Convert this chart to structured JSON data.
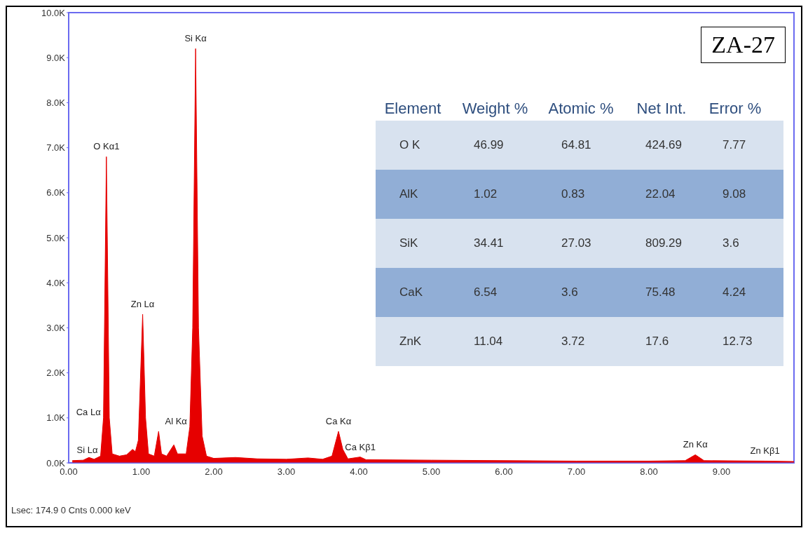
{
  "chart_data": {
    "type": "area",
    "title": "ZA-27",
    "x": [
      0.05,
      0.2,
      0.28,
      0.35,
      0.44,
      0.48,
      0.52,
      0.56,
      0.6,
      0.7,
      0.8,
      0.88,
      0.92,
      0.96,
      1.02,
      1.06,
      1.1,
      1.18,
      1.24,
      1.28,
      1.35,
      1.45,
      1.5,
      1.62,
      1.67,
      1.71,
      1.75,
      1.79,
      1.84,
      1.9,
      2.0,
      2.3,
      2.6,
      3.0,
      3.3,
      3.5,
      3.63,
      3.72,
      3.78,
      3.85,
      4.02,
      4.1,
      5.0,
      6.0,
      7.0,
      8.0,
      8.5,
      8.64,
      8.76,
      9.6,
      10.0
    ],
    "series": [
      {
        "color": "#e60000",
        "values": [
          50,
          60,
          120,
          80,
          150,
          1000,
          6800,
          1000,
          200,
          150,
          180,
          300,
          250,
          500,
          3300,
          1000,
          200,
          150,
          700,
          200,
          150,
          400,
          200,
          200,
          800,
          3000,
          9200,
          3000,
          600,
          150,
          100,
          120,
          90,
          80,
          110,
          80,
          150,
          700,
          300,
          90,
          130,
          70,
          60,
          50,
          40,
          40,
          50,
          180,
          50,
          40,
          30
        ]
      }
    ],
    "xlim": [
      0,
      10
    ],
    "xticks": [
      {
        "value": 0,
        "label": "0.00"
      },
      {
        "value": 1,
        "label": "1.00"
      },
      {
        "value": 2,
        "label": "2.00"
      },
      {
        "value": 3,
        "label": "3.00"
      },
      {
        "value": 4,
        "label": "4.00"
      },
      {
        "value": 5,
        "label": "5.00"
      },
      {
        "value": 6,
        "label": "6.00"
      },
      {
        "value": 7,
        "label": "7.00"
      },
      {
        "value": 8,
        "label": "8.00"
      },
      {
        "value": 9,
        "label": "9.00"
      }
    ],
    "ylim": [
      0,
      10000
    ],
    "yticks": [
      {
        "value": 0,
        "label": "0.0K"
      },
      {
        "value": 1000,
        "label": "1.0K"
      },
      {
        "value": 2000,
        "label": "2.0K"
      },
      {
        "value": 3000,
        "label": "3.0K"
      },
      {
        "value": 4000,
        "label": "4.0K"
      },
      {
        "value": 5000,
        "label": "5.0K"
      },
      {
        "value": 6000,
        "label": "6.0K"
      },
      {
        "value": 7000,
        "label": "7.0K"
      },
      {
        "value": 8000,
        "label": "8.0K"
      },
      {
        "value": 9000,
        "label": "9.0K"
      },
      {
        "value": 10000,
        "label": "10.0K"
      }
    ],
    "annotations": [
      "Element",
      "Weight %",
      "Atomic %",
      "Net Int.",
      "Error %",
      "O K",
      "46.99",
      "64.81",
      "424.69",
      "7.77",
      "AlK",
      "1.02",
      "0.83",
      "22.04",
      "9.08",
      "SiK",
      "34.41",
      "27.03",
      "809.29",
      "3.6",
      "CaK",
      "6.54",
      "3.6",
      "75.48",
      "4.24",
      "ZnK",
      "11.04",
      "3.72",
      "17.6",
      "12.73",
      "Lsec: 174.9 0 Cnts 0.000 keV",
      {
        "text": "Si Kα",
        "x": 1.75,
        "y": 9200
      },
      {
        "text": "O  Kα1",
        "x": 0.52,
        "y": 6800
      },
      {
        "text": "Zn Lα",
        "x": 1.02,
        "y": 3300
      },
      {
        "text": "Ca Lα",
        "x": 0.48,
        "y": 1000
      },
      {
        "text": "Si Lα",
        "x": 0.44,
        "y": 150
      },
      {
        "text": "Al Kα",
        "x": 1.67,
        "y": 800
      },
      {
        "text": "Ca Kα",
        "x": 3.72,
        "y": 700
      },
      {
        "text": "Ca Kβ1",
        "x": 4.02,
        "y": 130
      },
      {
        "text": "Zn Kα",
        "x": 8.64,
        "y": 180
      },
      {
        "text": "Zn Kβ1",
        "x": 9.6,
        "y": 40
      }
    ]
  }
}
